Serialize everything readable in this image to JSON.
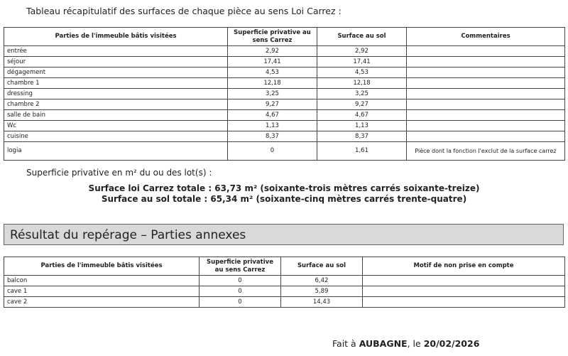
{
  "intro": "Tableau récapitulatif des surfaces de chaque pièce au sens Loi Carrez :",
  "table1": {
    "headers": [
      "Parties de l'immeuble bâtis visitées",
      "Superficie privative au sens Carrez",
      "Surface au sol",
      "Commentaires"
    ],
    "rows": [
      [
        "entrée",
        "2,92",
        "2,92",
        ""
      ],
      [
        "séjour",
        "17,41",
        "17,41",
        ""
      ],
      [
        "dégagement",
        "4,53",
        "4,53",
        ""
      ],
      [
        "chambre 1",
        "12,18",
        "12,18",
        ""
      ],
      [
        "dressing",
        "3,25",
        "3,25",
        ""
      ],
      [
        "chambre 2",
        "9,27",
        "9,27",
        ""
      ],
      [
        "salle de bain",
        "4,67",
        "4,67",
        ""
      ],
      [
        "Wc",
        "1,13",
        "1,13",
        ""
      ],
      [
        "cuisine",
        "8,37",
        "8,37",
        ""
      ],
      [
        "logia",
        "0",
        "1,61",
        "Pièce dont la fonction l'exclut de la surface carrez"
      ]
    ]
  },
  "superficie_label": "Superficie privative en m² du ou des lot(s) :",
  "total_carrez": "Surface loi Carrez totale : 63,73 m² (soixante-trois mètres carrés soixante-treize)",
  "total_sol": "Surface au sol totale : 65,34 m² (soixante-cinq mètres carrés trente-quatre)",
  "section_title": "Résultat du repérage – Parties annexes",
  "table2": {
    "headers": [
      "Parties de l'immeuble bâtis visitées",
      "Superficie privative au sens Carrez",
      "Surface au sol",
      "Motif de non prise en compte"
    ],
    "rows": [
      [
        "balcon",
        "0",
        "6,42",
        ""
      ],
      [
        "cave 1",
        "0",
        "5,89",
        ""
      ],
      [
        "cave 2",
        "0",
        "14,43",
        ""
      ]
    ]
  },
  "footer": {
    "prefix": "Fait à ",
    "city": "AUBAGNE",
    "middle": ", le ",
    "date": "20/02/2026"
  }
}
